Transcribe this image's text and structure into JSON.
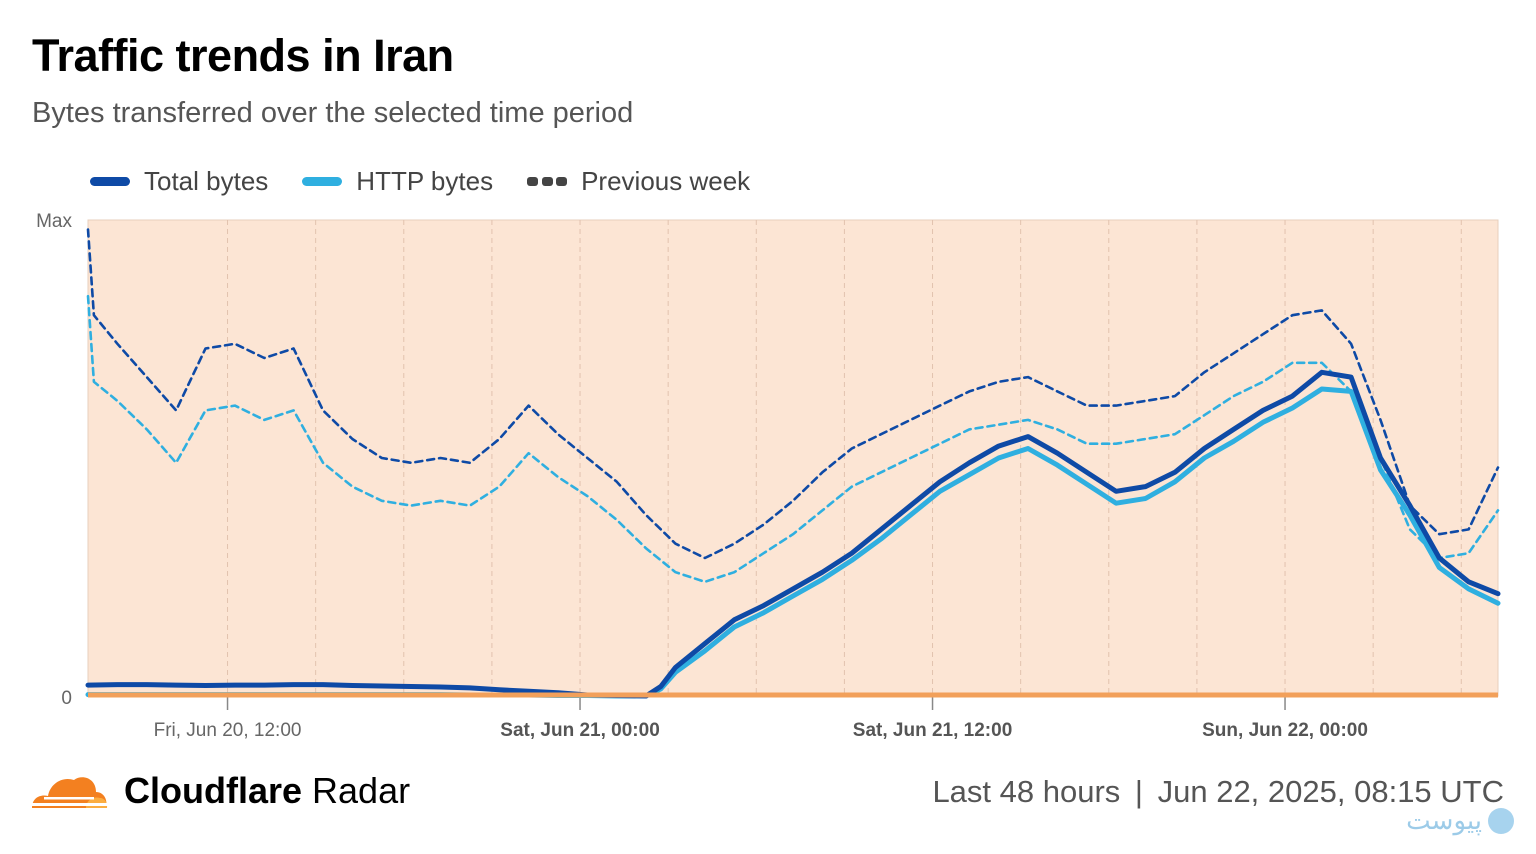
{
  "header": {
    "title": "Traffic trends in Iran",
    "subtitle": "Bytes transferred over the selected time period"
  },
  "legend": [
    {
      "label": "Total bytes",
      "color": "#0e4aa6",
      "style": "solid"
    },
    {
      "label": "HTTP bytes",
      "color": "#2fafe0",
      "style": "solid"
    },
    {
      "label": "Previous week",
      "color": "#444444",
      "style": "dashed"
    }
  ],
  "footer": {
    "brand_bold": "Cloudflare",
    "brand_light": "Radar",
    "range": "Last 48 hours",
    "separator": "|",
    "timestamp": "Jun 22, 2025, 08:15 UTC",
    "watermark": "پیوست"
  },
  "colors": {
    "plot_background": "#fce5d4",
    "total": "#0e4aa6",
    "http": "#2fafe0",
    "prev_total": "#0e4aa6",
    "prev_http": "#2fafe0",
    "baseline": "#f2a05a",
    "cloud_orange": "#f38020",
    "cloud_light": "#fbad41"
  },
  "chart_data": {
    "type": "line",
    "title": "Traffic trends in Iran",
    "y_tick_labels": [
      "Max",
      "0"
    ],
    "ylim": [
      0,
      100
    ],
    "x_range_hours": [
      0,
      48
    ],
    "x_tick_labels": [
      {
        "label": "Fri, Jun 20, 12:00",
        "hour": 4.75,
        "bold": false
      },
      {
        "label": "Sat, Jun 21, 00:00",
        "hour": 16.75,
        "bold": true
      },
      {
        "label": "Sat, Jun 21, 12:00",
        "hour": 28.75,
        "bold": true
      },
      {
        "label": "Sun, Jun 22, 00:00",
        "hour": 40.75,
        "bold": true
      }
    ],
    "grid": true,
    "legend_position": "top-left",
    "series": [
      {
        "name": "Total bytes",
        "x": [
          0,
          1,
          2,
          3,
          4,
          5,
          6,
          7,
          8,
          9,
          10,
          11,
          12,
          13,
          14,
          15,
          16,
          17,
          18,
          19,
          19.5,
          20,
          21,
          22,
          23,
          24,
          25,
          26,
          27,
          28,
          29,
          30,
          31,
          32,
          33,
          34,
          35,
          36,
          37,
          38,
          39,
          40,
          41,
          42,
          43,
          44,
          45,
          46,
          47,
          48
        ],
        "y": [
          2.3,
          2.4,
          2.4,
          2.3,
          2.2,
          2.3,
          2.3,
          2.4,
          2.4,
          2.2,
          2.1,
          2.0,
          1.9,
          1.7,
          1.3,
          1.0,
          0.7,
          0.2,
          0.1,
          0.0,
          2.0,
          6.0,
          11.0,
          16.0,
          19.0,
          22.5,
          26.0,
          30.0,
          35.0,
          40.0,
          45.0,
          49.0,
          52.5,
          54.5,
          51.0,
          47.0,
          43.0,
          44.0,
          47.0,
          52.0,
          56.0,
          60.0,
          63.0,
          68.0,
          67.0,
          50.0,
          40.0,
          29.0,
          24.0,
          21.5
        ]
      },
      {
        "name": "HTTP bytes",
        "x": [
          0,
          1,
          2,
          3,
          4,
          5,
          6,
          7,
          8,
          9,
          10,
          11,
          12,
          13,
          14,
          15,
          16,
          17,
          18,
          19,
          19.5,
          20,
          21,
          22,
          23,
          24,
          25,
          26,
          27,
          28,
          29,
          30,
          31,
          32,
          33,
          34,
          35,
          36,
          37,
          38,
          39,
          40,
          41,
          42,
          43,
          44,
          45,
          46,
          47,
          48
        ],
        "y": [
          0.3,
          0.3,
          0.3,
          0.3,
          0.3,
          0.3,
          0.3,
          0.3,
          0.3,
          0.3,
          0.3,
          0.3,
          0.3,
          0.2,
          0.2,
          0.2,
          0.1,
          0.1,
          0.0,
          0.0,
          1.5,
          5.0,
          9.5,
          14.5,
          17.5,
          21.0,
          24.5,
          28.5,
          33.0,
          38.0,
          43.0,
          46.5,
          50.0,
          52.0,
          48.5,
          44.5,
          40.5,
          41.5,
          45.0,
          50.0,
          53.5,
          57.5,
          60.5,
          64.5,
          64.0,
          47.5,
          38.0,
          27.0,
          22.5,
          19.5
        ]
      },
      {
        "name": "Previous week (Total bytes)",
        "dashed": true,
        "x": [
          0,
          0.2,
          1,
          2,
          3,
          4,
          5,
          6,
          7,
          8,
          9,
          10,
          11,
          12,
          13,
          14,
          15,
          16,
          17,
          18,
          19,
          20,
          21,
          22,
          23,
          24,
          25,
          26,
          27,
          28,
          29,
          30,
          31,
          32,
          33,
          34,
          35,
          36,
          37,
          38,
          39,
          40,
          41,
          42,
          43,
          44,
          45,
          46,
          47,
          48
        ],
        "y": [
          98.0,
          80.0,
          74.0,
          67.0,
          60.0,
          73.0,
          74.0,
          71.0,
          73.0,
          60.0,
          54.0,
          50.0,
          49.0,
          50.0,
          49.0,
          54.0,
          61.0,
          55.0,
          50.0,
          45.0,
          38.0,
          32.0,
          29.0,
          32.0,
          36.0,
          41.0,
          47.0,
          52.0,
          55.0,
          58.0,
          61.0,
          64.0,
          66.0,
          67.0,
          64.0,
          61.0,
          61.0,
          62.0,
          63.0,
          68.0,
          72.0,
          76.0,
          80.0,
          81.0,
          74.0,
          58.0,
          40.0,
          34.0,
          35.0,
          48.0
        ]
      },
      {
        "name": "Previous week (HTTP bytes)",
        "dashed": true,
        "x": [
          0,
          0.2,
          1,
          2,
          3,
          4,
          5,
          6,
          7,
          8,
          9,
          10,
          11,
          12,
          13,
          14,
          15,
          16,
          17,
          18,
          19,
          20,
          21,
          22,
          23,
          24,
          25,
          26,
          27,
          28,
          29,
          30,
          31,
          32,
          33,
          34,
          35,
          36,
          37,
          38,
          39,
          40,
          41,
          42,
          43,
          44,
          45,
          46,
          47,
          48
        ],
        "y": [
          84.0,
          66.0,
          62.0,
          56.0,
          49.0,
          60.0,
          61.0,
          58.0,
          60.0,
          49.0,
          44.0,
          41.0,
          40.0,
          41.0,
          40.0,
          44.0,
          51.0,
          46.0,
          42.0,
          37.0,
          31.0,
          26.0,
          24.0,
          26.0,
          30.0,
          34.0,
          39.0,
          44.0,
          47.0,
          50.0,
          53.0,
          56.0,
          57.0,
          58.0,
          56.0,
          53.0,
          53.0,
          54.0,
          55.0,
          59.0,
          63.0,
          66.0,
          70.0,
          70.0,
          64.0,
          50.0,
          35.0,
          29.0,
          30.0,
          39.0
        ]
      }
    ]
  }
}
